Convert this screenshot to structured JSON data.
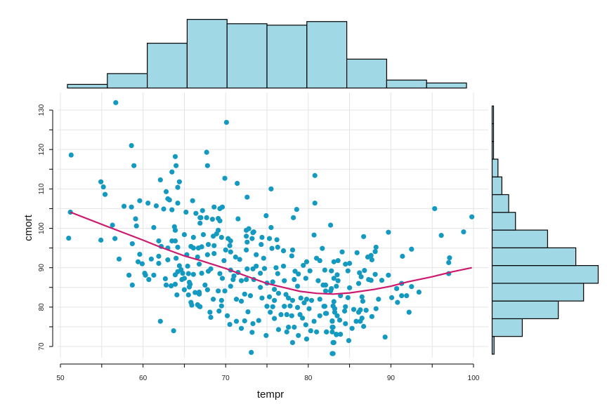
{
  "chart_data": {
    "type": "scatter",
    "title": "",
    "xlabel": "tempr",
    "ylabel": "cmort",
    "xlim": [
      50,
      100
    ],
    "ylim": [
      70,
      130
    ],
    "x_ticks": [
      "50",
      "60",
      "70",
      "80",
      "90",
      "100"
    ],
    "y_ticks": [
      "70",
      "80",
      "90",
      "100",
      "110",
      "120",
      "130"
    ],
    "grid": true,
    "colors": {
      "points": "#1499c0",
      "smooth": "#cc1a6e",
      "hist_fill": "#a0d8e6",
      "hist_stroke": "#000000",
      "grid": "#e4e4e4"
    },
    "points": [
      [
        56.7,
        131.9
      ],
      [
        51.3,
        118.6
      ],
      [
        58.6,
        121.0
      ],
      [
        58.9,
        115.9
      ],
      [
        63.9,
        118.2
      ],
      [
        64.0,
        115.9
      ],
      [
        63.5,
        114.3
      ],
      [
        62.1,
        112.3
      ],
      [
        64.4,
        111.8
      ],
      [
        64.2,
        110.4
      ],
      [
        54.9,
        111.8
      ],
      [
        55.2,
        110.5
      ],
      [
        55.4,
        108.6
      ],
      [
        62.8,
        109.3
      ],
      [
        63.0,
        107.5
      ],
      [
        63.2,
        107.2
      ],
      [
        59.6,
        107.0
      ],
      [
        60.6,
        106.4
      ],
      [
        61.6,
        105.7
      ],
      [
        57.7,
        105.6
      ],
      [
        58.6,
        105.4
      ],
      [
        62.5,
        104.9
      ],
      [
        63.5,
        104.7
      ],
      [
        64.2,
        106.4
      ],
      [
        66.0,
        107.0
      ],
      [
        65.2,
        104.1
      ],
      [
        66.4,
        103.8
      ],
      [
        66.9,
        102.7
      ],
      [
        66.9,
        101.3
      ],
      [
        51.2,
        104.1
      ],
      [
        59.1,
        102.4
      ],
      [
        59.2,
        100.6
      ],
      [
        56.3,
        100.8
      ],
      [
        61.3,
        100.2
      ],
      [
        63.8,
        100.4
      ],
      [
        63.9,
        99.5
      ],
      [
        51.0,
        97.5
      ],
      [
        54.9,
        97.0
      ],
      [
        56.6,
        97.4
      ],
      [
        58.7,
        96.1
      ],
      [
        65.0,
        98.4
      ],
      [
        66.1,
        97.7
      ],
      [
        61.9,
        96.8
      ],
      [
        63.5,
        96.8
      ],
      [
        63.9,
        96.8
      ],
      [
        62.2,
        95.4
      ],
      [
        63.0,
        95.0
      ],
      [
        64.2,
        95.2
      ],
      [
        65.8,
        95.4
      ],
      [
        66.1,
        95.0
      ],
      [
        66.7,
        95.0
      ],
      [
        59.6,
        93.4
      ],
      [
        61.9,
        92.9
      ],
      [
        57.1,
        92.2
      ],
      [
        61.0,
        92.2
      ],
      [
        63.0,
        92.0
      ],
      [
        64.0,
        92.4
      ],
      [
        65.3,
        93.3
      ],
      [
        66.6,
        92.7
      ],
      [
        59.4,
        91.5
      ],
      [
        59.9,
        91.0
      ],
      [
        61.9,
        91.1
      ],
      [
        64.4,
        90.5
      ],
      [
        64.6,
        89.5
      ],
      [
        64.2,
        89.0
      ],
      [
        64.8,
        88.6
      ],
      [
        63.9,
        88.2
      ],
      [
        65.4,
        90.4
      ],
      [
        58.3,
        88.1
      ],
      [
        58.7,
        85.6
      ],
      [
        60.2,
        88.6
      ],
      [
        60.3,
        88.1
      ],
      [
        60.7,
        87.0
      ],
      [
        61.3,
        88.1
      ],
      [
        62.7,
        87.2
      ],
      [
        62.8,
        85.6
      ],
      [
        63.4,
        85.4
      ],
      [
        63.9,
        85.8
      ],
      [
        65.5,
        88.5
      ],
      [
        66.1,
        88.3
      ],
      [
        64.7,
        87.0
      ],
      [
        65.0,
        87.3
      ],
      [
        65.6,
        86.3
      ],
      [
        65.7,
        85.8
      ],
      [
        65.6,
        85.1
      ],
      [
        65.0,
        84.4
      ],
      [
        64.1,
        83.1
      ],
      [
        65.5,
        83.1
      ],
      [
        66.3,
        83.7
      ],
      [
        66.8,
        83.3
      ],
      [
        65.8,
        81.2
      ],
      [
        65.9,
        80.5
      ],
      [
        66.6,
        80.6
      ],
      [
        66.9,
        80.1
      ],
      [
        62.1,
        76.4
      ],
      [
        63.7,
        74.0
      ],
      [
        70.1,
        126.9
      ],
      [
        67.7,
        119.3
      ],
      [
        67.8,
        115.9
      ],
      [
        69.9,
        112.7
      ],
      [
        71.4,
        111.4
      ],
      [
        75.5,
        110.0
      ],
      [
        80.8,
        113.4
      ],
      [
        72.6,
        107.9
      ],
      [
        80.8,
        106.4
      ],
      [
        78.6,
        104.8
      ],
      [
        74.9,
        103.2
      ],
      [
        78.2,
        102.7
      ],
      [
        75.5,
        100.2
      ],
      [
        82.7,
        100.8
      ],
      [
        71.5,
        102.4
      ],
      [
        68.6,
        105.4
      ],
      [
        69.3,
        105.0
      ],
      [
        69.6,
        105.4
      ],
      [
        67.2,
        104.5
      ],
      [
        67.0,
        102.7
      ],
      [
        67.7,
        102.7
      ],
      [
        68.4,
        102.3
      ],
      [
        69.1,
        102.5
      ],
      [
        69.3,
        101.9
      ],
      [
        69.1,
        99.5
      ],
      [
        72.5,
        99.5
      ],
      [
        72.8,
        99.9
      ],
      [
        73.4,
        99.1
      ],
      [
        67.3,
        98.4
      ],
      [
        68.5,
        98.0
      ],
      [
        68.9,
        98.6
      ],
      [
        69.5,
        97.7
      ],
      [
        70.3,
        97.4
      ],
      [
        72.5,
        98.0
      ],
      [
        73.3,
        98.9
      ],
      [
        74.4,
        97.7
      ],
      [
        75.3,
        97.4
      ],
      [
        76.2,
        97.1
      ],
      [
        80.7,
        98.3
      ],
      [
        67.1,
        95.3
      ],
      [
        67.9,
        95.9
      ],
      [
        68.6,
        95.6
      ],
      [
        70.6,
        96.8
      ],
      [
        70.5,
        95.6
      ],
      [
        72.6,
        96.5
      ],
      [
        73.2,
        97.4
      ],
      [
        74.3,
        95.9
      ],
      [
        75.6,
        94.9
      ],
      [
        76.3,
        95.2
      ],
      [
        77.0,
        94.3
      ],
      [
        78.1,
        94.5
      ],
      [
        81.7,
        94.9
      ],
      [
        67.8,
        93.3
      ],
      [
        68.6,
        93.6
      ],
      [
        70.0,
        94.5
      ],
      [
        70.6,
        94.0
      ],
      [
        72.5,
        94.5
      ],
      [
        71.2,
        92.7
      ],
      [
        71.7,
        92.1
      ],
      [
        73.7,
        93.3
      ],
      [
        74.6,
        92.4
      ],
      [
        78.0,
        93.0
      ],
      [
        81.0,
        92.4
      ],
      [
        81.4,
        91.8
      ],
      [
        83.1,
        91.5
      ],
      [
        79.8,
        91.5
      ],
      [
        79.4,
        90.6
      ],
      [
        66.8,
        90.9
      ],
      [
        69.8,
        91.8
      ],
      [
        67.1,
        88.6
      ],
      [
        68.2,
        89.7
      ],
      [
        67.9,
        89.1
      ],
      [
        69.3,
        88.5
      ],
      [
        70.6,
        89.4
      ],
      [
        71.5,
        88.8
      ],
      [
        72.6,
        89.7
      ],
      [
        73.3,
        89.7
      ],
      [
        73.7,
        90.4
      ],
      [
        74.7,
        89.8
      ],
      [
        74.2,
        88.6
      ],
      [
        76.1,
        90.0
      ],
      [
        77.0,
        90.4
      ],
      [
        76.3,
        88.5
      ],
      [
        78.4,
        89.1
      ],
      [
        78.8,
        88.4
      ],
      [
        80.2,
        89.2
      ],
      [
        82.0,
        89.4
      ],
      [
        82.8,
        89.2
      ],
      [
        83.5,
        88.2
      ],
      [
        69.6,
        87.3
      ],
      [
        71.0,
        87.9
      ],
      [
        66.8,
        83.8
      ],
      [
        67.5,
        85.6
      ],
      [
        67.8,
        84.4
      ],
      [
        69.1,
        84.1
      ],
      [
        69.9,
        84.1
      ],
      [
        70.6,
        85.3
      ],
      [
        70.9,
        87.0
      ],
      [
        71.9,
        86.7
      ],
      [
        72.5,
        87.0
      ],
      [
        73.4,
        87.0
      ],
      [
        74.2,
        85.0
      ],
      [
        75.0,
        86.1
      ],
      [
        75.7,
        86.4
      ],
      [
        75.9,
        84.5
      ],
      [
        76.4,
        83.5
      ],
      [
        77.1,
        86.7
      ],
      [
        78.3,
        87.0
      ],
      [
        78.7,
        85.3
      ],
      [
        79.7,
        87.3
      ],
      [
        81.2,
        86.7
      ],
      [
        81.8,
        85.6
      ],
      [
        82.1,
        84.1
      ],
      [
        82.8,
        84.7
      ],
      [
        83.1,
        87.3
      ],
      [
        68.5,
        82.0
      ],
      [
        69.5,
        81.7
      ],
      [
        71.3,
        82.0
      ],
      [
        71.9,
        81.5
      ],
      [
        72.3,
        83.3
      ],
      [
        73.0,
        82.9
      ],
      [
        74.4,
        82.3
      ],
      [
        75.3,
        82.6
      ],
      [
        75.9,
        81.7
      ],
      [
        77.3,
        83.2
      ],
      [
        77.6,
        82.3
      ],
      [
        78.1,
        81.7
      ],
      [
        78.7,
        79.9
      ],
      [
        79.1,
        82.3
      ],
      [
        79.8,
        82.0
      ],
      [
        80.4,
        81.7
      ],
      [
        81.4,
        82.0
      ],
      [
        82.0,
        80.2
      ],
      [
        83.1,
        81.4
      ],
      [
        66.8,
        80.2
      ],
      [
        69.5,
        80.3
      ],
      [
        75.0,
        80.2
      ],
      [
        75.7,
        80.1
      ],
      [
        77.1,
        80.2
      ],
      [
        77.8,
        80.3
      ],
      [
        79.5,
        81.1
      ],
      [
        80.1,
        79.6
      ],
      [
        83.2,
        79.6
      ],
      [
        68.1,
        78.7
      ],
      [
        68.2,
        77.4
      ],
      [
        69.2,
        79.0
      ],
      [
        70.2,
        77.8
      ],
      [
        71.3,
        76.4
      ],
      [
        72.3,
        76.5
      ],
      [
        72.7,
        78.8
      ],
      [
        74.0,
        76.6
      ],
      [
        73.3,
        75.8
      ],
      [
        75.4,
        78.7
      ],
      [
        75.9,
        77.1
      ],
      [
        76.7,
        78.1
      ],
      [
        77.4,
        78.1
      ],
      [
        78.0,
        77.8
      ],
      [
        79.0,
        78.1
      ],
      [
        79.3,
        77.2
      ],
      [
        80.7,
        76.4
      ],
      [
        81.4,
        77.8
      ],
      [
        82.2,
        78.4
      ],
      [
        82.9,
        76.5
      ],
      [
        70.5,
        75.6
      ],
      [
        71.9,
        74.6
      ],
      [
        73.2,
        73.6
      ],
      [
        74.9,
        72.8
      ],
      [
        76.4,
        74.3
      ],
      [
        77.6,
        74.9
      ],
      [
        78.3,
        74.9
      ],
      [
        77.4,
        73.7
      ],
      [
        78.8,
        72.8
      ],
      [
        79.7,
        75.5
      ],
      [
        79.8,
        71.9
      ],
      [
        80.3,
        74.0
      ],
      [
        81.0,
        73.7
      ],
      [
        82.2,
        73.7
      ],
      [
        82.9,
        74.9
      ],
      [
        83.4,
        73.1
      ],
      [
        78.1,
        71.0
      ],
      [
        83.1,
        71.0
      ],
      [
        73.1,
        68.5
      ],
      [
        83.0,
        68.2
      ],
      [
        95.3,
        105.0
      ],
      [
        99.8,
        102.9
      ],
      [
        98.8,
        99.1
      ],
      [
        96.1,
        98.2
      ],
      [
        89.7,
        99.0
      ],
      [
        86.7,
        97.9
      ],
      [
        88.2,
        95.2
      ],
      [
        88.1,
        94.1
      ],
      [
        92.5,
        94.7
      ],
      [
        91.4,
        92.9
      ],
      [
        97.1,
        92.5
      ],
      [
        97.0,
        91.3
      ],
      [
        97.0,
        88.5
      ],
      [
        84.1,
        94.0
      ],
      [
        85.9,
        93.8
      ],
      [
        87.2,
        92.7
      ],
      [
        87.6,
        93.1
      ],
      [
        87.7,
        92.0
      ],
      [
        83.6,
        91.8
      ],
      [
        84.5,
        90.9
      ],
      [
        85.0,
        91.1
      ],
      [
        84.8,
        89.2
      ],
      [
        86.8,
        89.3
      ],
      [
        86.2,
        88.7
      ],
      [
        86.4,
        87.7
      ],
      [
        88.1,
        88.3
      ],
      [
        89.7,
        88.1
      ],
      [
        87.3,
        87.0
      ],
      [
        87.6,
        86.8
      ],
      [
        88.9,
        86.8
      ],
      [
        86.1,
        86.0
      ],
      [
        85.0,
        84.9
      ],
      [
        91.3,
        86.0
      ],
      [
        90.7,
        84.7
      ],
      [
        92.5,
        85.2
      ],
      [
        93.4,
        83.8
      ],
      [
        83.6,
        86.7
      ],
      [
        92.2,
        78.7
      ],
      [
        91.3,
        82.9
      ],
      [
        91.9,
        82.9
      ],
      [
        90.8,
        81.2
      ],
      [
        90.1,
        82.4
      ],
      [
        88.5,
        82.0
      ],
      [
        88.2,
        79.6
      ],
      [
        87.7,
        77.6
      ],
      [
        89.3,
        72.4
      ],
      [
        87.0,
        79.2
      ],
      [
        86.7,
        75.1
      ],
      [
        86.5,
        77.2
      ],
      [
        86.3,
        76.4
      ],
      [
        85.8,
        76.4
      ],
      [
        85.3,
        74.6
      ],
      [
        84.8,
        82.4
      ],
      [
        85.5,
        79.4
      ],
      [
        86.1,
        78.7
      ],
      [
        86.3,
        79.3
      ],
      [
        86.5,
        82.6
      ],
      [
        86.6,
        81.5
      ],
      [
        84.5,
        75.8
      ],
      [
        83.8,
        76.7
      ],
      [
        84.9,
        71.5
      ],
      [
        83.0,
        71.0
      ],
      [
        82.9,
        68.2
      ],
      [
        84.5,
        80.1
      ],
      [
        84.4,
        79.0
      ],
      [
        83.9,
        82.9
      ],
      [
        83.4,
        85.3
      ],
      [
        82.7,
        84.1
      ],
      [
        83.0,
        80.3
      ],
      [
        83.2,
        78.7
      ],
      [
        83.5,
        77.8
      ],
      [
        82.9,
        76.4
      ],
      [
        83.0,
        74.9
      ],
      [
        82.2,
        73.7
      ],
      [
        82.9,
        73.7
      ],
      [
        83.4,
        73.0
      ],
      [
        83.9,
        73.1
      ],
      [
        82.1,
        78.4
      ],
      [
        81.9,
        80.2
      ],
      [
        82.1,
        85.6
      ]
    ],
    "smooth_line": [
      [
        51.2,
        104.1
      ],
      [
        55,
        101.0
      ],
      [
        57,
        99.4
      ],
      [
        60,
        97.0
      ],
      [
        62,
        95.3
      ],
      [
        65,
        93.0
      ],
      [
        67,
        91.8
      ],
      [
        70,
        89.8
      ],
      [
        73,
        87.5
      ],
      [
        75,
        86.0
      ],
      [
        77,
        85.0
      ],
      [
        79,
        84.0
      ],
      [
        81,
        83.5
      ],
      [
        83,
        83.3
      ],
      [
        85,
        83.6
      ],
      [
        88,
        84.5
      ],
      [
        90,
        85.3
      ],
      [
        92,
        86.4
      ],
      [
        95,
        87.7
      ],
      [
        97.5,
        89.0
      ],
      [
        99.8,
        90.0
      ]
    ],
    "x_histogram": {
      "type": "bar",
      "bin_start": 50.85,
      "bin_width": 4.83,
      "counts": [
        5,
        20,
        62,
        95,
        89,
        87,
        92,
        40,
        11,
        7
      ]
    },
    "y_histogram": {
      "type": "bar",
      "bin_start": 68.05,
      "bin_width": 4.5,
      "counts": [
        2,
        31,
        68,
        94,
        109,
        86,
        57,
        24,
        17,
        10,
        6,
        1,
        1,
        1
      ]
    }
  }
}
